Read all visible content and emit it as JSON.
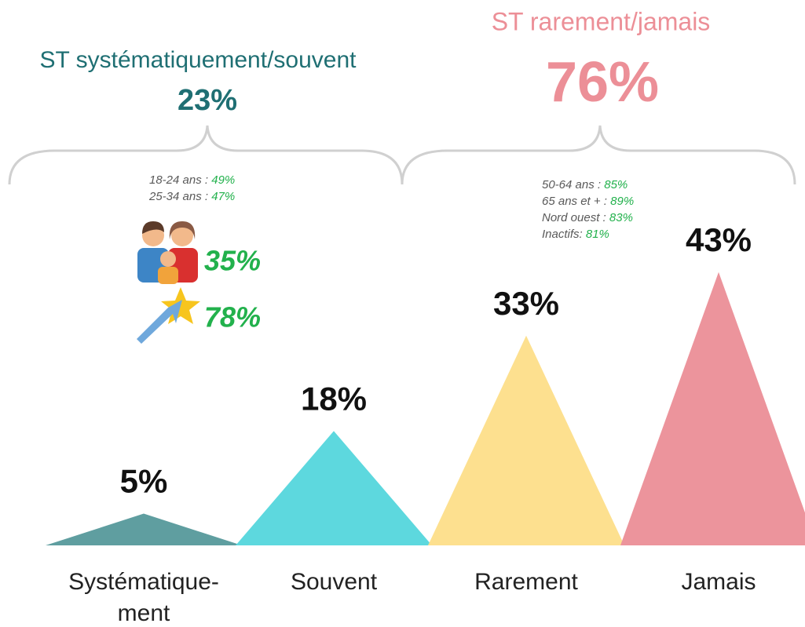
{
  "chart_data": {
    "type": "triangle",
    "categories": [
      "Systématique-\nment",
      "Souvent",
      "Rarement",
      "Jamais"
    ],
    "values": [
      5,
      18,
      33,
      43
    ],
    "value_labels": [
      "5%",
      "18%",
      "33%",
      "43%"
    ],
    "colors": [
      "#5f9ea0",
      "#5dd8de",
      "#fde08f",
      "#ec949c"
    ],
    "groups": [
      {
        "name": "ST systématiquement/souvent",
        "value": 23,
        "value_label": "23%",
        "color": "#1f6f73",
        "notes": [
          {
            "label": "18-24 ans :",
            "value": 49,
            "value_label": "49%"
          },
          {
            "label": "25-34 ans :",
            "value": 47,
            "value_label": "47%"
          }
        ],
        "icons": [
          {
            "value": 35,
            "value_label": "35%"
          },
          {
            "value": 78,
            "value_label": "78%"
          }
        ]
      },
      {
        "name": "ST rarement/jamais",
        "value": 76,
        "value_label": "76%",
        "color": "#ec8f97",
        "notes": [
          {
            "label": "50-64 ans :",
            "value": 85,
            "value_label": "85%"
          },
          {
            "label": "65 ans et + :",
            "value": 89,
            "value_label": "89%"
          },
          {
            "label": "Nord ouest :",
            "value": 83,
            "value_label": "83%"
          },
          {
            "label": "Inactifs:",
            "value": 81,
            "value_label": "81%"
          }
        ]
      }
    ]
  }
}
